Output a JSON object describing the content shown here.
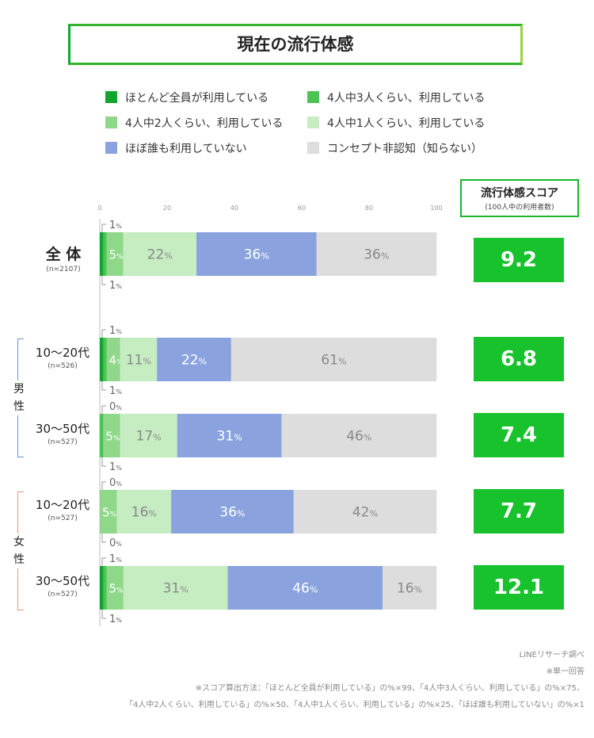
{
  "title": "現在の流行体感",
  "legend": [
    {
      "label": "ほとんど全員が利用している",
      "color": "#14a32c"
    },
    {
      "label": "4人中3人くらい、利用している",
      "color": "#4bc455"
    },
    {
      "label": "4人中2人くらい、利用している",
      "color": "#8fd88a"
    },
    {
      "label": "4人中1人くらい、利用している",
      "color": "#c6ecc2"
    },
    {
      "label": "ほぼ誰も利用していない",
      "color": "#8aa3de"
    },
    {
      "label": "コンセプト非認知（知らない）",
      "color": "#dddddd"
    }
  ],
  "score_header": {
    "title": "流行体感スコア",
    "subtitle": "(100人中の利用者数)"
  },
  "groups": {
    "male": "男性",
    "female": "女性"
  },
  "chart_data": {
    "type": "bar",
    "orientation": "horizontal-stacked-100",
    "xlim": [
      0,
      100
    ],
    "xticks": [
      0,
      20,
      40,
      60,
      80,
      100
    ],
    "percent_unit": "%",
    "series_names": [
      "ほとんど全員が利用している",
      "4人中3人くらい、利用している",
      "4人中2人くらい、利用している",
      "4人中1人くらい、利用している",
      "ほぼ誰も利用していない",
      "コンセプト非認知（知らない）"
    ],
    "rows": [
      {
        "label": "全 体",
        "n": "(n=2107)",
        "values": [
          1,
          1,
          5,
          22,
          36,
          36
        ],
        "display": [
          "1",
          "1",
          "5",
          "22",
          "36",
          "36"
        ],
        "score": "9.2"
      },
      {
        "label": "10〜20代",
        "n": "(n=526)",
        "values": [
          1,
          1,
          4,
          11,
          22,
          61
        ],
        "display": [
          "1",
          "1",
          "4",
          "11",
          "22",
          "61"
        ],
        "score": "6.8"
      },
      {
        "label": "30〜50代",
        "n": "(n=527)",
        "values": [
          0,
          1,
          5,
          17,
          31,
          46
        ],
        "display": [
          "0",
          "1",
          "5",
          "17",
          "31",
          "46"
        ],
        "score": "7.4"
      },
      {
        "label": "10〜20代",
        "n": "(n=527)",
        "values": [
          0,
          0,
          5,
          16,
          36,
          42
        ],
        "display": [
          "0",
          "0",
          "5",
          "16",
          "36",
          "42"
        ],
        "score": "7.7"
      },
      {
        "label": "30〜50代",
        "n": "(n=527)",
        "values": [
          1,
          1,
          5,
          31,
          46,
          16
        ],
        "display": [
          "1",
          "1",
          "5",
          "31",
          "46",
          "16"
        ],
        "score": "12.1"
      }
    ]
  },
  "footnotes": [
    "LINEリサーチ調べ",
    "※単一回答",
    "※スコア算出方法：「ほとんど全員が利用している」の%×99、「4人中3人くらい、利用している」の%×75、",
    "「4人中2人くらい、利用している」の%×50、「4人中1人くらい、利用している」の%×25、「ほぼ誰も利用していない」の%×1"
  ]
}
